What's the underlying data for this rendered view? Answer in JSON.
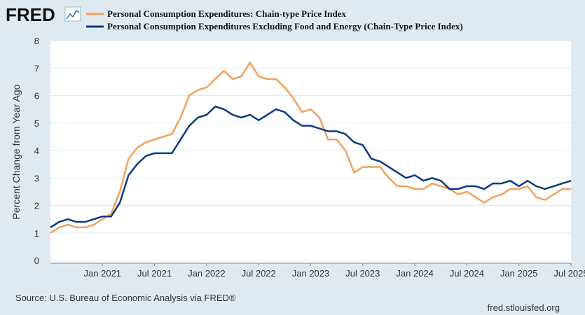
{
  "logo": "FRED",
  "source": "Source: U.S. Bureau of Economic Analysis via FRED®",
  "site": "fred.stlouisfed.org",
  "chart_data": {
    "type": "line",
    "y_label": "Percent Change from Year Ago",
    "x": [
      "2020-07",
      "2020-08",
      "2020-09",
      "2020-10",
      "2020-11",
      "2020-12",
      "2021-01",
      "2021-02",
      "2021-03",
      "2021-04",
      "2021-05",
      "2021-06",
      "2021-07",
      "2021-08",
      "2021-09",
      "2021-10",
      "2021-11",
      "2021-12",
      "2022-01",
      "2022-02",
      "2022-03",
      "2022-04",
      "2022-05",
      "2022-06",
      "2022-07",
      "2022-08",
      "2022-09",
      "2022-10",
      "2022-11",
      "2022-12",
      "2023-01",
      "2023-02",
      "2023-03",
      "2023-04",
      "2023-05",
      "2023-06",
      "2023-07",
      "2023-08",
      "2023-09",
      "2023-10",
      "2023-11",
      "2023-12",
      "2024-01",
      "2024-02",
      "2024-03",
      "2024-04",
      "2024-05",
      "2024-06",
      "2024-07",
      "2024-08",
      "2024-09",
      "2024-10",
      "2024-11",
      "2024-12",
      "2025-01",
      "2025-02",
      "2025-03",
      "2025-04",
      "2025-05",
      "2025-06",
      "2025-07"
    ],
    "series": [
      {
        "name": "Personal Consumption Expenditures: Chain-type Price Index",
        "color": "#f2a25c",
        "values": [
          1.0,
          1.2,
          1.3,
          1.2,
          1.2,
          1.3,
          1.5,
          1.7,
          2.5,
          3.7,
          4.1,
          4.3,
          4.4,
          4.5,
          4.6,
          5.2,
          6.0,
          6.2,
          6.3,
          6.6,
          6.9,
          6.6,
          6.7,
          7.2,
          6.7,
          6.6,
          6.6,
          6.3,
          5.9,
          5.4,
          5.5,
          5.2,
          4.4,
          4.4,
          4.0,
          3.2,
          3.4,
          3.4,
          3.4,
          3.0,
          2.7,
          2.7,
          2.6,
          2.6,
          2.8,
          2.7,
          2.6,
          2.4,
          2.5,
          2.3,
          2.1,
          2.3,
          2.4,
          2.6,
          2.6,
          2.7,
          2.3,
          2.2,
          2.4,
          2.6,
          2.6
        ]
      },
      {
        "name": "Personal Consumption Expenditures Excluding Food and Energy (Chain-Type Price Index)",
        "color": "#0a3c7d",
        "values": [
          1.2,
          1.4,
          1.5,
          1.4,
          1.4,
          1.5,
          1.6,
          1.6,
          2.1,
          3.1,
          3.5,
          3.8,
          3.9,
          3.9,
          3.9,
          4.4,
          4.9,
          5.2,
          5.3,
          5.6,
          5.5,
          5.3,
          5.2,
          5.3,
          5.1,
          5.3,
          5.5,
          5.4,
          5.1,
          4.9,
          4.9,
          4.8,
          4.7,
          4.7,
          4.6,
          4.3,
          4.2,
          3.7,
          3.6,
          3.4,
          3.2,
          3.0,
          3.1,
          2.9,
          3.0,
          2.9,
          2.6,
          2.6,
          2.7,
          2.7,
          2.6,
          2.8,
          2.8,
          2.9,
          2.7,
          2.9,
          2.7,
          2.6,
          2.7,
          2.8,
          2.9
        ]
      }
    ],
    "xlim": [
      "2020-07",
      "2025-07"
    ],
    "xticks": [
      {
        "value": "2021-01",
        "label": "Jan 2021"
      },
      {
        "value": "2021-07",
        "label": "Jul 2021"
      },
      {
        "value": "2022-01",
        "label": "Jan 2022"
      },
      {
        "value": "2022-07",
        "label": "Jul 2022"
      },
      {
        "value": "2023-01",
        "label": "Jan 2023"
      },
      {
        "value": "2023-07",
        "label": "Jul 2023"
      },
      {
        "value": "2024-01",
        "label": "Jan 2024"
      },
      {
        "value": "2024-07",
        "label": "Jul 2024"
      },
      {
        "value": "2025-01",
        "label": "Jan 2025"
      },
      {
        "value": "2025-07",
        "label": "Jul 2025"
      }
    ],
    "ylim": [
      0,
      8
    ],
    "yticks": [
      0,
      1,
      2,
      3,
      4,
      5,
      6,
      7,
      8
    ],
    "grid": true
  }
}
